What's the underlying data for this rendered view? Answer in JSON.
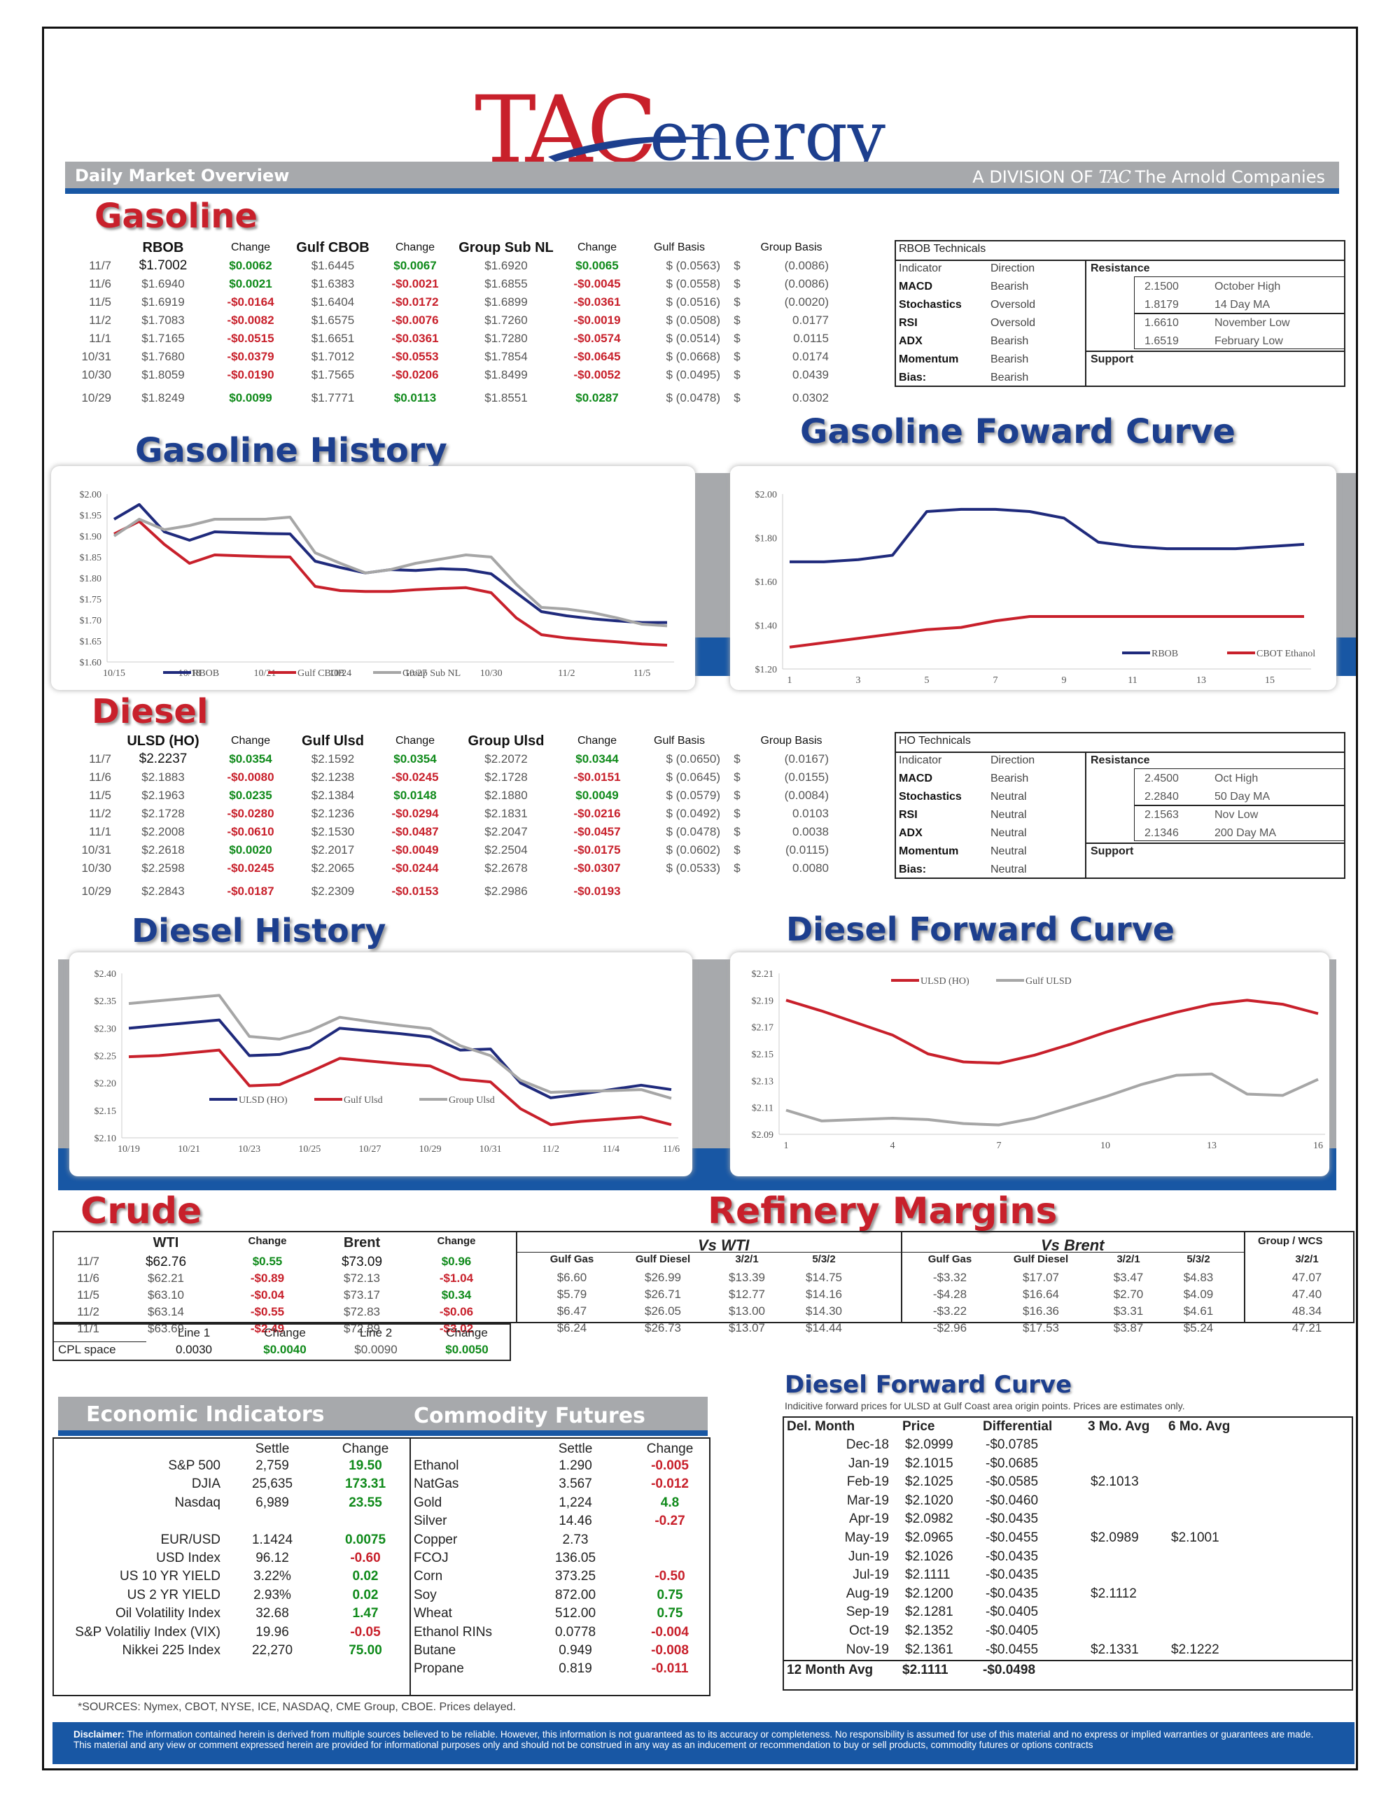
{
  "header": {
    "logo_tac": "TAC",
    "logo_energy": "energy",
    "reg": "®",
    "banner_left": "Daily Market Overview",
    "division": "A DIVISION OF",
    "division_tac": "TAC",
    "division_name": "The Arnold Companies"
  },
  "gasoline": {
    "title": "Gasoline",
    "headers": [
      "RBOB",
      "Change",
      "Gulf CBOB",
      "Change",
      "Group Sub NL",
      "Change",
      "Gulf Basis",
      "Group Basis"
    ],
    "rows": [
      [
        "11/7",
        "$1.7002",
        "$0.0062",
        "$1.6445",
        "$0.0067",
        "$1.6920",
        "$0.0065",
        "$ (0.0563)",
        "$",
        "(0.0086)"
      ],
      [
        "11/6",
        "$1.6940",
        "$0.0021",
        "$1.6383",
        "-$0.0021",
        "$1.6855",
        "-$0.0045",
        "$ (0.0558)",
        "$",
        "(0.0086)"
      ],
      [
        "11/5",
        "$1.6919",
        "-$0.0164",
        "$1.6404",
        "-$0.0172",
        "$1.6899",
        "-$0.0361",
        "$ (0.0516)",
        "$",
        "(0.0020)"
      ],
      [
        "11/2",
        "$1.7083",
        "-$0.0082",
        "$1.6575",
        "-$0.0076",
        "$1.7260",
        "-$0.0019",
        "$ (0.0508)",
        "$",
        "0.0177"
      ],
      [
        "11/1",
        "$1.7165",
        "-$0.0515",
        "$1.6651",
        "-$0.0361",
        "$1.7280",
        "-$0.0574",
        "$ (0.0514)",
        "$",
        "0.0115"
      ],
      [
        "10/31",
        "$1.7680",
        "-$0.0379",
        "$1.7012",
        "-$0.0553",
        "$1.7854",
        "-$0.0645",
        "$ (0.0668)",
        "$",
        "0.0174"
      ],
      [
        "10/30",
        "$1.8059",
        "-$0.0190",
        "$1.7565",
        "-$0.0206",
        "$1.8499",
        "-$0.0052",
        "$ (0.0495)",
        "$",
        "0.0439"
      ],
      [
        "10/29",
        "$1.8249",
        "$0.0099",
        "$1.7771",
        "$0.0113",
        "$1.8551",
        "$0.0287",
        "$ (0.0478)",
        "$",
        "0.0302"
      ]
    ],
    "tech_title": "RBOB Technicals",
    "tech_hdr": [
      "Indicator",
      "Direction"
    ],
    "tech": [
      [
        "MACD",
        "Bearish"
      ],
      [
        "Stochastics",
        "Oversold"
      ],
      [
        "RSI",
        "Oversold"
      ],
      [
        "ADX",
        "Bearish"
      ],
      [
        "Momentum",
        "Bearish"
      ],
      [
        "Bias:",
        "Bearish"
      ]
    ],
    "res_title": "Resistance",
    "sup_title": "Support",
    "levels": [
      [
        "2.1500",
        "October High"
      ],
      [
        "1.8179",
        "14 Day MA"
      ],
      [
        "1.6610",
        "November Low"
      ],
      [
        "1.6519",
        "February Low"
      ]
    ]
  },
  "diesel": {
    "title": "Diesel",
    "headers": [
      "ULSD (HO)",
      "Change",
      "Gulf Ulsd",
      "Change",
      "Group Ulsd",
      "Change",
      "Gulf Basis",
      "Group Basis"
    ],
    "rows": [
      [
        "11/7",
        "$2.2237",
        "$0.0354",
        "$2.1592",
        "$0.0354",
        "$2.2072",
        "$0.0344",
        "$ (0.0650)",
        "$",
        "(0.0167)"
      ],
      [
        "11/6",
        "$2.1883",
        "-$0.0080",
        "$2.1238",
        "-$0.0245",
        "$2.1728",
        "-$0.0151",
        "$ (0.0645)",
        "$",
        "(0.0155)"
      ],
      [
        "11/5",
        "$2.1963",
        "$0.0235",
        "$2.1384",
        "$0.0148",
        "$2.1880",
        "$0.0049",
        "$ (0.0579)",
        "$",
        "(0.0084)"
      ],
      [
        "11/2",
        "$2.1728",
        "-$0.0280",
        "$2.1236",
        "-$0.0294",
        "$2.1831",
        "-$0.0216",
        "$ (0.0492)",
        "$",
        "0.0103"
      ],
      [
        "11/1",
        "$2.2008",
        "-$0.0610",
        "$2.1530",
        "-$0.0487",
        "$2.2047",
        "-$0.0457",
        "$ (0.0478)",
        "$",
        "0.0038"
      ],
      [
        "10/31",
        "$2.2618",
        "$0.0020",
        "$2.2017",
        "-$0.0049",
        "$2.2504",
        "-$0.0175",
        "$ (0.0602)",
        "$",
        "(0.0115)"
      ],
      [
        "10/30",
        "$2.2598",
        "-$0.0245",
        "$2.2065",
        "-$0.0244",
        "$2.2678",
        "-$0.0307",
        "$ (0.0533)",
        "$",
        "0.0080"
      ],
      [
        "10/29",
        "$2.2843",
        "-$0.0187",
        "$2.2309",
        "-$0.0153",
        "$2.2986",
        "-$0.0193",
        "",
        "",
        " "
      ]
    ],
    "tech_title": "HO Technicals",
    "tech_hdr": [
      "Indicator",
      "Direction"
    ],
    "tech": [
      [
        "MACD",
        "Bearish"
      ],
      [
        "Stochastics",
        "Neutral"
      ],
      [
        "RSI",
        "Neutral"
      ],
      [
        "ADX",
        "Neutral"
      ],
      [
        "Momentum",
        "Neutral"
      ],
      [
        "Bias:",
        "Neutral"
      ]
    ],
    "res_title": "Resistance",
    "sup_title": "Support",
    "levels": [
      [
        "2.4500",
        "Oct High"
      ],
      [
        "2.2840",
        "50 Day MA"
      ],
      [
        "2.1563",
        "Nov Low"
      ],
      [
        "2.1346",
        "200 Day MA"
      ]
    ]
  },
  "section_titles": {
    "gas_hist": "Gasoline History",
    "gas_fwd": "Gasoline Foward Curve",
    "dsl_hist": "Diesel History",
    "dsl_fwd": "Diesel Forward Curve",
    "crude": "Crude",
    "margins": "Refinery Margins",
    "dsl_fwd2": "Diesel Forward Curve"
  },
  "chart_data": [
    {
      "type": "line",
      "id": "gas_hist",
      "x": [
        "10/15",
        "10/16",
        "10/17",
        "10/18",
        "10/19",
        "10/20",
        "10/21",
        "10/22",
        "10/23",
        "10/24",
        "10/25",
        "10/26",
        "10/27",
        "10/28",
        "10/29",
        "10/30",
        "10/31",
        "11/1",
        "11/2",
        "11/3",
        "11/4",
        "11/5",
        "11/6"
      ],
      "xticks": [
        "10/15",
        "10/18",
        "10/21",
        "10/24",
        "10/27",
        "10/30",
        "11/2",
        "11/5"
      ],
      "ylim": [
        1.6,
        2.0
      ],
      "yticks": [
        "$1.60",
        "$1.65",
        "$1.70",
        "$1.75",
        "$1.80",
        "$1.85",
        "$1.90",
        "$1.95",
        "$2.00"
      ],
      "series": [
        {
          "name": "RBOB",
          "color": "#1f2a7c",
          "values": [
            1.94,
            1.975,
            1.91,
            1.89,
            1.91,
            1.908,
            1.906,
            1.905,
            1.84,
            1.825,
            1.812,
            1.82,
            1.818,
            1.822,
            1.82,
            1.81,
            1.765,
            1.72,
            1.71,
            1.703,
            1.698,
            1.694,
            1.694
          ]
        },
        {
          "name": "Gulf CBOB",
          "color": "#c8202b",
          "values": [
            1.905,
            1.935,
            1.88,
            1.835,
            1.855,
            1.853,
            1.851,
            1.85,
            1.78,
            1.77,
            1.768,
            1.768,
            1.772,
            1.775,
            1.777,
            1.765,
            1.705,
            1.665,
            1.657,
            1.652,
            1.648,
            1.643,
            1.64
          ]
        },
        {
          "name": "Group Sub NL",
          "color": "#a6a6a6",
          "values": [
            1.9,
            1.94,
            1.915,
            1.925,
            1.94,
            1.94,
            1.94,
            1.945,
            1.86,
            1.835,
            1.812,
            1.82,
            1.835,
            1.845,
            1.855,
            1.85,
            1.785,
            1.73,
            1.726,
            1.718,
            1.705,
            1.69,
            1.686
          ]
        }
      ]
    },
    {
      "type": "line",
      "id": "gas_fwd",
      "x": [
        1,
        2,
        3,
        4,
        5,
        6,
        7,
        8,
        9,
        10,
        11,
        12,
        13,
        14,
        15,
        16
      ],
      "xticks": [
        "1",
        "3",
        "5",
        "7",
        "9",
        "11",
        "13",
        "15"
      ],
      "ylim": [
        1.2,
        2.0
      ],
      "yticks": [
        "$1.20",
        "$1.40",
        "$1.60",
        "$1.80",
        "$2.00"
      ],
      "series": [
        {
          "name": "RBOB",
          "color": "#1f2a7c",
          "values": [
            1.69,
            1.69,
            1.7,
            1.72,
            1.92,
            1.93,
            1.93,
            1.92,
            1.89,
            1.78,
            1.76,
            1.75,
            1.75,
            1.75,
            1.76,
            1.77
          ]
        },
        {
          "name": "CBOT Ethanol",
          "color": "#c8202b",
          "values": [
            1.3,
            1.32,
            1.34,
            1.36,
            1.38,
            1.39,
            1.42,
            1.44,
            1.44,
            1.44,
            1.44,
            1.44,
            1.44,
            1.44,
            1.44,
            1.44
          ]
        }
      ]
    },
    {
      "type": "line",
      "id": "dsl_hist",
      "x": [
        "10/19",
        "10/20",
        "10/21",
        "10/22",
        "10/23",
        "10/24",
        "10/25",
        "10/26",
        "10/27",
        "10/28",
        "10/29",
        "10/30",
        "10/31",
        "11/1",
        "11/2",
        "11/3",
        "11/4",
        "11/5",
        "11/6"
      ],
      "xticks": [
        "10/19",
        "10/21",
        "10/23",
        "10/25",
        "10/27",
        "10/29",
        "10/31",
        "11/2",
        "11/4",
        "11/6"
      ],
      "ylim": [
        2.1,
        2.4
      ],
      "yticks": [
        "$2.10",
        "$2.15",
        "$2.20",
        "$2.25",
        "$2.30",
        "$2.35",
        "$2.40"
      ],
      "series": [
        {
          "name": "ULSD (HO)",
          "color": "#1f2a7c",
          "values": [
            2.3,
            2.305,
            2.31,
            2.315,
            2.25,
            2.252,
            2.265,
            2.3,
            2.295,
            2.29,
            2.284,
            2.26,
            2.262,
            2.2,
            2.173,
            2.18,
            2.188,
            2.196,
            2.188
          ]
        },
        {
          "name": "Gulf Ulsd",
          "color": "#c8202b",
          "values": [
            2.248,
            2.25,
            2.255,
            2.26,
            2.195,
            2.197,
            2.22,
            2.245,
            2.24,
            2.235,
            2.231,
            2.207,
            2.202,
            2.153,
            2.124,
            2.13,
            2.134,
            2.138,
            2.124
          ]
        },
        {
          "name": "Group Ulsd",
          "color": "#a6a6a6",
          "values": [
            2.345,
            2.35,
            2.355,
            2.36,
            2.285,
            2.28,
            2.295,
            2.32,
            2.312,
            2.305,
            2.299,
            2.268,
            2.25,
            2.205,
            2.183,
            2.185,
            2.186,
            2.188,
            2.172
          ]
        }
      ]
    },
    {
      "type": "line",
      "id": "dsl_fwd",
      "x": [
        1,
        2,
        3,
        4,
        5,
        6,
        7,
        8,
        9,
        10,
        11,
        12,
        13,
        14,
        15,
        16
      ],
      "xticks": [
        "1",
        "4",
        "7",
        "10",
        "13",
        "16"
      ],
      "ylim": [
        2.09,
        2.21
      ],
      "yticks": [
        "$2.09",
        "$2.11",
        "$2.13",
        "$2.15",
        "$2.17",
        "$2.19",
        "$2.21"
      ],
      "series": [
        {
          "name": "ULSD (HO)",
          "color": "#c8202b",
          "values": [
            2.19,
            2.182,
            2.173,
            2.164,
            2.15,
            2.144,
            2.143,
            2.149,
            2.157,
            2.166,
            2.174,
            2.181,
            2.187,
            2.19,
            2.187,
            2.18
          ]
        },
        {
          "name": "Gulf ULSD",
          "color": "#a6a6a6",
          "values": [
            2.108,
            2.1,
            2.101,
            2.102,
            2.101,
            2.098,
            2.097,
            2.102,
            2.11,
            2.118,
            2.127,
            2.134,
            2.135,
            2.12,
            2.119,
            2.131
          ]
        }
      ]
    }
  ],
  "crude": {
    "headers": [
      "WTI",
      "Change",
      "Brent",
      "Change"
    ],
    "rows": [
      [
        "11/7",
        "$62.76",
        "$0.55",
        "$73.09",
        "$0.96"
      ],
      [
        "11/6",
        "$62.21",
        "-$0.89",
        "$72.13",
        "-$1.04"
      ],
      [
        "11/5",
        "$63.10",
        "-$0.04",
        "$73.17",
        "$0.34"
      ],
      [
        "11/2",
        "$63.14",
        "-$0.55",
        "$72.83",
        "-$0.06"
      ],
      [
        "11/1",
        "$63.69",
        "-$2.49",
        "$72.89",
        "-$3.02"
      ]
    ],
    "cpl_headers": [
      "Line 1",
      "Change",
      "Line 2",
      "Change"
    ],
    "cpl": [
      "CPL space",
      "0.0030",
      "$0.0040",
      "$0.0090",
      "$0.0050"
    ]
  },
  "margins": {
    "vs_wti": "Vs WTI",
    "vs_brent": "Vs Brent",
    "group_wcs": "Group / WCS",
    "headers": [
      "Gulf Gas",
      "Gulf Diesel",
      "3/2/1",
      "5/3/2",
      "Gulf Gas",
      "Gulf Diesel",
      "3/2/1",
      "5/3/2",
      "3/2/1"
    ],
    "rows": [
      [
        "$6.60",
        "$26.99",
        "$13.39",
        "$14.75",
        "-$3.32",
        "$17.07",
        "$3.47",
        "$4.83",
        "47.07"
      ],
      [
        "$5.79",
        "$26.71",
        "$12.77",
        "$14.16",
        "-$4.28",
        "$16.64",
        "$2.70",
        "$4.09",
        "47.40"
      ],
      [
        "$6.47",
        "$26.05",
        "$13.00",
        "$14.30",
        "-$3.22",
        "$16.36",
        "$3.31",
        "$4.61",
        "48.34"
      ],
      [
        "$6.24",
        "$26.73",
        "$13.07",
        "$14.44",
        "-$2.96",
        "$17.53",
        "$3.87",
        "$5.24",
        "47.21"
      ]
    ]
  },
  "econ": {
    "title": "Economic Indicators",
    "title2": "Commodity Futures",
    "hdr": [
      "Settle",
      "Change",
      "Settle",
      "Change"
    ],
    "rows": [
      [
        "S&P 500",
        "2,759",
        "19.50",
        "Ethanol",
        "1.290",
        "-0.005"
      ],
      [
        "DJIA",
        "25,635",
        "173.31",
        "NatGas",
        "3.567",
        "-0.012"
      ],
      [
        "Nasdaq",
        "6,989",
        "23.55",
        "Gold",
        "1,224",
        "4.8"
      ],
      [
        "",
        "",
        "",
        "Silver",
        "14.46",
        "-0.27"
      ],
      [
        "EUR/USD",
        "1.1424",
        "0.0075",
        "Copper",
        "2.73",
        ""
      ],
      [
        "USD Index",
        "96.12",
        "-0.60",
        "FCOJ",
        "136.05",
        ""
      ],
      [
        "US 10 YR YIELD",
        "3.22%",
        "0.02",
        "Corn",
        "373.25",
        "-0.50"
      ],
      [
        "US 2 YR YIELD",
        "2.93%",
        "0.02",
        "Soy",
        "872.00",
        "0.75"
      ],
      [
        "Oil Volatility Index",
        "32.68",
        "1.47",
        "Wheat",
        "512.00",
        "0.75"
      ],
      [
        "S&P Volatiliy Index (VIX)",
        "19.96",
        "-0.05",
        "Ethanol RINs",
        "0.0778",
        "-0.004"
      ],
      [
        "Nikkei 225 Index",
        "22,270",
        "75.00",
        "Butane",
        "0.949",
        "-0.008"
      ],
      [
        "",
        "",
        "",
        "Propane",
        "0.819",
        "-0.011"
      ]
    ],
    "sources": "*SOURCES: Nymex, CBOT, NYSE, ICE, NASDAQ, CME Group, CBOE.   Prices delayed."
  },
  "fwd_table": {
    "note": "Indicitive forward prices for ULSD at Gulf Coast area origin points.  Prices are estimates only.",
    "headers": [
      "Del. Month",
      "Price",
      "Differential",
      "3 Mo. Avg",
      "6 Mo. Avg"
    ],
    "rows": [
      [
        "Dec-18",
        "$2.0999",
        "-$0.0785",
        "",
        ""
      ],
      [
        "Jan-19",
        "$2.1015",
        "-$0.0685",
        "",
        ""
      ],
      [
        "Feb-19",
        "$2.1025",
        "-$0.0585",
        "$2.1013",
        ""
      ],
      [
        "Mar-19",
        "$2.1020",
        "-$0.0460",
        "",
        ""
      ],
      [
        "Apr-19",
        "$2.0982",
        "-$0.0435",
        "",
        ""
      ],
      [
        "May-19",
        "$2.0965",
        "-$0.0455",
        "$2.0989",
        "$2.1001"
      ],
      [
        "Jun-19",
        "$2.1026",
        "-$0.0435",
        "",
        ""
      ],
      [
        "Jul-19",
        "$2.1111",
        "-$0.0435",
        "",
        ""
      ],
      [
        "Aug-19",
        "$2.1200",
        "-$0.0435",
        "$2.1112",
        ""
      ],
      [
        "Sep-19",
        "$2.1281",
        "-$0.0405",
        "",
        ""
      ],
      [
        "Oct-19",
        "$2.1352",
        "-$0.0405",
        "",
        ""
      ],
      [
        "Nov-19",
        "$2.1361",
        "-$0.0455",
        "$2.1331",
        "$2.1222"
      ]
    ],
    "total": [
      "12 Month Avg",
      "$2.1111",
      "-$0.0498"
    ]
  },
  "disclaimer": {
    "label": "Disclaimer:",
    "text": "The information contained herein is derived from multiple sources believed to be reliable.  However, this information is not  guaranteed as to its accuracy or completeness. No responsibility is assumed for use of this material and no express or implied  warranties or guarantees are made. This material and any view or comment expressed herein are provided for informational purposes only and should not be construed in any way as an inducement or recommendation to buy or sell products, commodity futures or options contracts"
  },
  "colors": {
    "red": "#c8202b",
    "navy": "#1d3f8e",
    "green": "#0f8a1a",
    "gray": "#a6a6a6",
    "banner_blue": "#1857a4"
  }
}
